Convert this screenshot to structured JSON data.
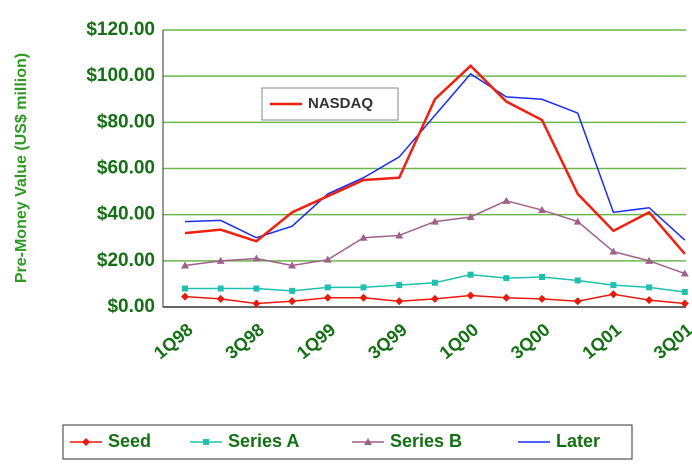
{
  "chart_data": {
    "type": "line",
    "ylabel": "Pre-Money Value (US$ million)",
    "categories": [
      "1Q98",
      null,
      "3Q98",
      null,
      "1Q99",
      null,
      "3Q99",
      null,
      "1Q00",
      null,
      "3Q00",
      null,
      "1Q01",
      null,
      "3Q01"
    ],
    "ylim": [
      0,
      120
    ],
    "yticks": [
      {
        "value": 0,
        "label": "$0.00"
      },
      {
        "value": 20,
        "label": "$20.00"
      },
      {
        "value": 40,
        "label": "$40.00"
      },
      {
        "value": 60,
        "label": "$60.00"
      },
      {
        "value": 80,
        "label": "$80.00"
      },
      {
        "value": 100,
        "label": "$100.00"
      },
      {
        "value": 120,
        "label": "$120.00"
      }
    ],
    "grid": true,
    "series": [
      {
        "name": "Seed",
        "color": "#e8190f",
        "marker": "diamond",
        "values": [
          4.5,
          3.5,
          1.5,
          2.5,
          4,
          4,
          2.5,
          3.5,
          5,
          4,
          3.5,
          2.5,
          5.5,
          3,
          1.5
        ]
      },
      {
        "name": "Series A",
        "color": "#20c0b0",
        "marker": "square",
        "values": [
          8,
          8,
          8,
          7,
          8.5,
          8.5,
          9.5,
          10.5,
          14,
          12.5,
          13,
          11.5,
          9.5,
          8.5,
          6.5
        ]
      },
      {
        "name": "Series B",
        "color": "#a0608a",
        "marker": "triangle",
        "values": [
          18,
          20,
          21,
          18,
          20.5,
          30,
          31,
          37,
          39,
          46,
          42,
          37,
          24,
          20,
          14.5
        ]
      },
      {
        "name": "Later",
        "color": "#1a2cf0",
        "marker": "none",
        "values": [
          37,
          37.5,
          30,
          35,
          49,
          56,
          65,
          83,
          101,
          91,
          90,
          84,
          41,
          43,
          29
        ]
      },
      {
        "name": "NASDAQ",
        "color": "#f02010",
        "marker": "none",
        "values": [
          32,
          33.5,
          28.5,
          41,
          48,
          55,
          56,
          90,
          104.5,
          89,
          81,
          49,
          33,
          41,
          23
        ]
      }
    ]
  }
}
